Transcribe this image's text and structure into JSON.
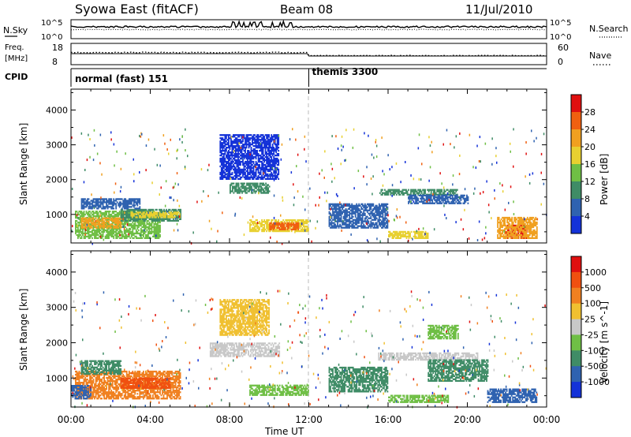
{
  "header": {
    "radar": "Syowa East (fitACF)",
    "beam": "Beam 08",
    "date": "11/Jul/2010"
  },
  "nsky_panel": {
    "left_label": "N.Sky",
    "right_label": "N.Search",
    "left_ticks": [
      "10^5",
      "10^0"
    ],
    "right_ticks": [
      "10^5",
      "10^0"
    ]
  },
  "freq_panel": {
    "left_label_line1": "Freq.",
    "left_label_line2": "[MHz]",
    "right_label": "Nave",
    "left_ticks": [
      "18",
      "8"
    ],
    "right_ticks": [
      "60",
      "0"
    ]
  },
  "cpid_panel": {
    "label": "CPID",
    "modes": [
      {
        "name": "normal (fast) 151",
        "start_hour": 0
      },
      {
        "name": "themis 3300",
        "start_hour": 12
      }
    ]
  },
  "time_axis": {
    "label": "Time UT",
    "ticks": [
      "00:00",
      "04:00",
      "08:00",
      "12:00",
      "16:00",
      "20:00",
      "00:00"
    ]
  },
  "chart_data": [
    {
      "type": "heatmap",
      "title": "",
      "ylabel": "Slant Range [km]",
      "xlabel": "Time UT",
      "xlim_hours": [
        0,
        24
      ],
      "ylim_km": [
        180,
        4600
      ],
      "yticks": [
        "1000",
        "2000",
        "3000",
        "4000"
      ],
      "colorbar_label": "Power [dB]",
      "colorbar_ticks": [
        "4",
        "8",
        "12",
        "16",
        "20",
        "24",
        "28"
      ],
      "colorbar_colors": [
        "#1432d8",
        "#2f62b0",
        "#3f8c66",
        "#6fbf45",
        "#e8d030",
        "#f0a020",
        "#f06010",
        "#e01010"
      ],
      "regions": [
        {
          "t0": 0.2,
          "t1": 4.5,
          "r0": 300,
          "r1": 1100,
          "color": "#6fbf45"
        },
        {
          "t0": 0.5,
          "t1": 2.5,
          "r0": 600,
          "r1": 900,
          "color": "#f0a020"
        },
        {
          "t0": 2.5,
          "t1": 5.5,
          "r0": 800,
          "r1": 1150,
          "color": "#3f8c66"
        },
        {
          "t0": 3.0,
          "t1": 5.5,
          "r0": 900,
          "r1": 1050,
          "color": "#e8d030"
        },
        {
          "t0": 0.5,
          "t1": 3.5,
          "r0": 1150,
          "r1": 1450,
          "color": "#2f62b0"
        },
        {
          "t0": 8.0,
          "t1": 10.0,
          "r0": 1600,
          "r1": 1900,
          "color": "#3f8c66"
        },
        {
          "t0": 7.5,
          "t1": 10.5,
          "r0": 2000,
          "r1": 3300,
          "color": "#1432d8"
        },
        {
          "t0": 9.0,
          "t1": 12.0,
          "r0": 500,
          "r1": 850,
          "color": "#e8d030"
        },
        {
          "t0": 10.0,
          "t1": 11.5,
          "r0": 550,
          "r1": 750,
          "color": "#f06010"
        },
        {
          "t0": 15.5,
          "t1": 19.5,
          "r0": 1550,
          "r1": 1700,
          "color": "#3f8c66"
        },
        {
          "t0": 17.0,
          "t1": 20.0,
          "r0": 1300,
          "r1": 1550,
          "color": "#2f62b0"
        },
        {
          "t0": 22.0,
          "t1": 23.0,
          "r0": 300,
          "r1": 700,
          "color": "#e01010"
        },
        {
          "t0": 21.5,
          "t1": 23.5,
          "r0": 300,
          "r1": 900,
          "color": "#f0a020"
        },
        {
          "t0": 16.0,
          "t1": 18.0,
          "r0": 300,
          "r1": 500,
          "color": "#e8d030"
        },
        {
          "t0": 13.0,
          "t1": 16.0,
          "r0": 600,
          "r1": 1300,
          "color": "#2f62b0"
        }
      ]
    },
    {
      "type": "heatmap",
      "title": "",
      "ylabel": "Slant Range [km]",
      "xlabel": "Time UT",
      "xlim_hours": [
        0,
        24
      ],
      "ylim_km": [
        180,
        4600
      ],
      "yticks": [
        "1000",
        "2000",
        "3000",
        "4000"
      ],
      "colorbar_label": "Velocity [m s^-1]",
      "colorbar_ticks": [
        "1000",
        "500",
        "100",
        "25",
        "-25",
        "-100",
        "-500",
        "-1000"
      ],
      "colorbar_colors": [
        "#1432d8",
        "#2f62b0",
        "#3f8c66",
        "#6fbf45",
        "#c8c8c8",
        "#f0c030",
        "#f08020",
        "#f05010",
        "#e01010"
      ],
      "regions": [
        {
          "t0": 0.2,
          "t1": 5.5,
          "r0": 400,
          "r1": 1200,
          "color": "#f08020"
        },
        {
          "t0": 0.5,
          "t1": 2.5,
          "r0": 1100,
          "r1": 1500,
          "color": "#3f8c66"
        },
        {
          "t0": 2.5,
          "t1": 5.0,
          "r0": 700,
          "r1": 1000,
          "color": "#f05010"
        },
        {
          "t0": 0.0,
          "t1": 1.0,
          "r0": 400,
          "r1": 800,
          "color": "#2f62b0"
        },
        {
          "t0": 7.0,
          "t1": 10.5,
          "r0": 1600,
          "r1": 2000,
          "color": "#c8c8c8"
        },
        {
          "t0": 7.5,
          "t1": 10.0,
          "r0": 2200,
          "r1": 3200,
          "color": "#f0c030"
        },
        {
          "t0": 9.0,
          "t1": 12.0,
          "r0": 500,
          "r1": 800,
          "color": "#6fbf45"
        },
        {
          "t0": 15.5,
          "t1": 20.5,
          "r0": 1500,
          "r1": 1700,
          "color": "#c8c8c8"
        },
        {
          "t0": 18.0,
          "t1": 21.0,
          "r0": 900,
          "r1": 1500,
          "color": "#3f8c66"
        },
        {
          "t0": 21.0,
          "t1": 23.5,
          "r0": 300,
          "r1": 700,
          "color": "#2f62b0"
        },
        {
          "t0": 16.0,
          "t1": 19.0,
          "r0": 300,
          "r1": 500,
          "color": "#6fbf45"
        },
        {
          "t0": 13.0,
          "t1": 16.0,
          "r0": 600,
          "r1": 1300,
          "color": "#3f8c66"
        },
        {
          "t0": 18.0,
          "t1": 19.5,
          "r0": 2100,
          "r1": 2500,
          "color": "#6fbf45"
        }
      ]
    }
  ]
}
